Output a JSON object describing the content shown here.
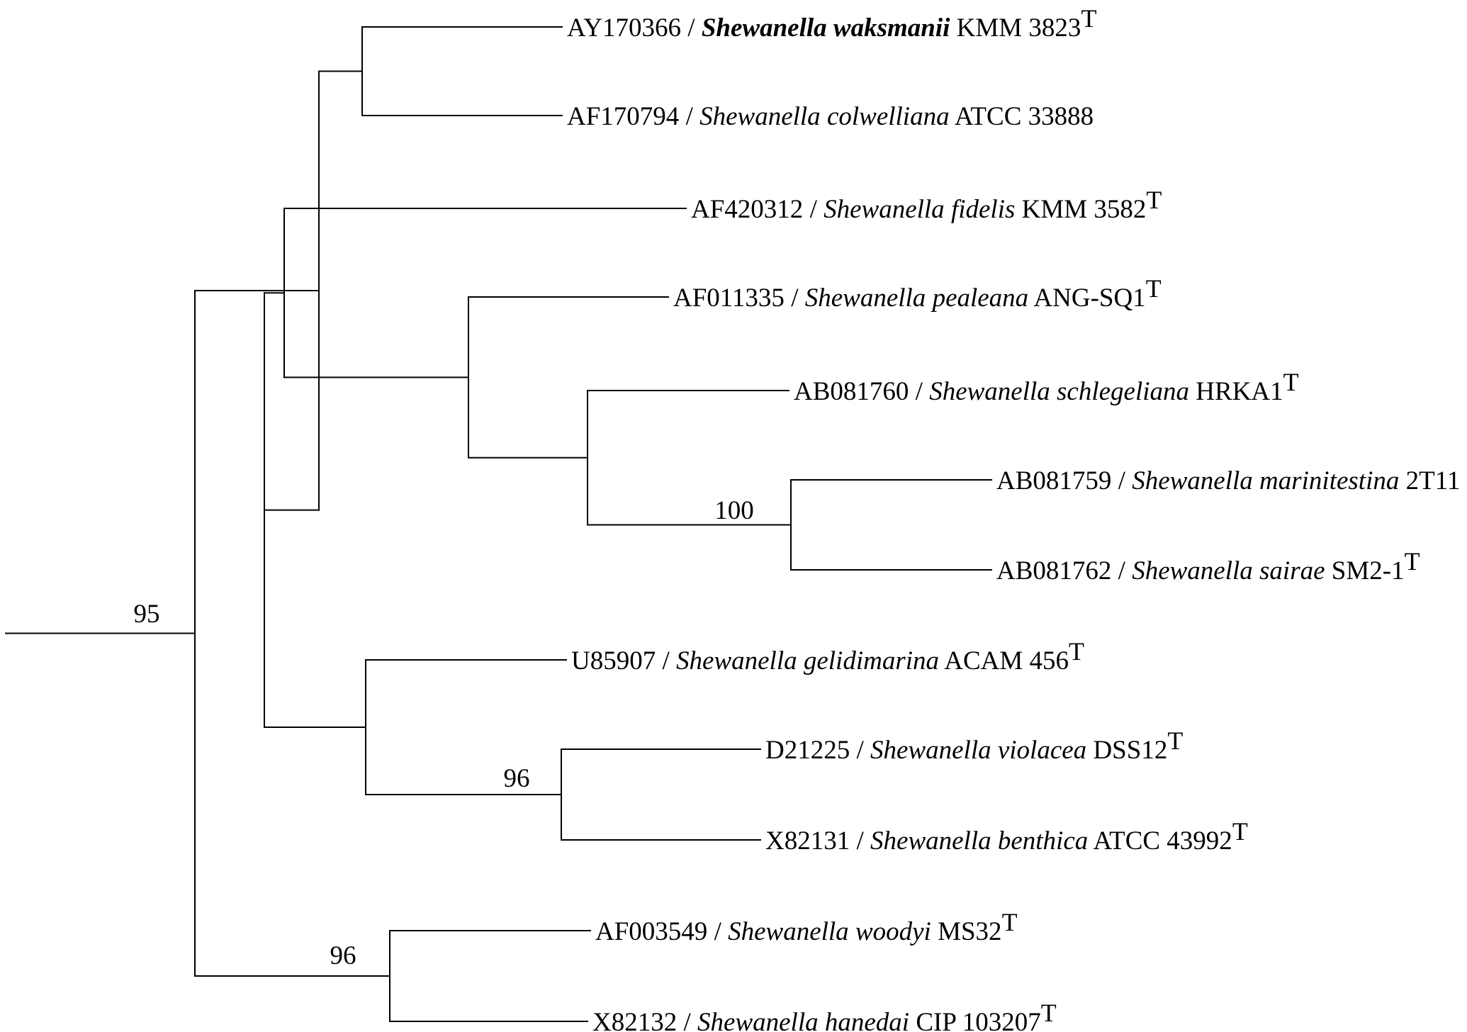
{
  "leaves": [
    {
      "id": "waksmanii",
      "accession": "AY170366",
      "genus": "Shewanella",
      "species": "waksmanii",
      "strain": "KMM 3823",
      "type_strain": "T",
      "bold": true
    },
    {
      "id": "colwelliana",
      "accession": "AF170794",
      "genus": "Shewanella",
      "species": "colwelliana",
      "strain": "ATCC 33888",
      "type_strain": "",
      "bold": false
    },
    {
      "id": "fidelis",
      "accession": "AF420312",
      "genus": "Shewanella",
      "species": "fidelis",
      "strain": "KMM 3582",
      "type_strain": "T",
      "bold": false
    },
    {
      "id": "pealeana",
      "accession": "AF011335",
      "genus": "Shewanella",
      "species": "pealeana",
      "strain": "ANG-SQ1",
      "type_strain": "T",
      "bold": false
    },
    {
      "id": "schlegeliana",
      "accession": "AB081760",
      "genus": "Shewanella",
      "species": "schlegeliana",
      "strain": "HRKA1",
      "type_strain": "T",
      "bold": false
    },
    {
      "id": "marinitestina",
      "accession": "AB081759",
      "genus": "Shewanella",
      "species": "marinitestina",
      "strain": "2T11",
      "type_strain": "",
      "bold": false
    },
    {
      "id": "sairae",
      "accession": "AB081762",
      "genus": "Shewanella",
      "species": "sairae",
      "strain": "SM2-1",
      "type_strain": "T",
      "bold": false
    },
    {
      "id": "gelidimarina",
      "accession": "U85907",
      "genus": "Shewanella",
      "species": "gelidimarina",
      "strain": "ACAM 456",
      "type_strain": "T",
      "bold": false
    },
    {
      "id": "violacea",
      "accession": "D21225",
      "genus": "Shewanella",
      "species": "violacea",
      "strain": "DSS12",
      "type_strain": "T",
      "bold": false
    },
    {
      "id": "benthica",
      "accession": "X82131",
      "genus": "Shewanella",
      "species": "benthica",
      "strain": "ATCC 43992",
      "type_strain": "T",
      "bold": false
    },
    {
      "id": "woodyi",
      "accession": "AF003549",
      "genus": "Shewanella",
      "species": "woodyi",
      "strain": "MS32",
      "type_strain": "T",
      "bold": false
    },
    {
      "id": "hanedai",
      "accession": "X82132",
      "genus": "Shewanella",
      "species": "hanedai",
      "strain": "CIP 103207",
      "type_strain": "T",
      "bold": false
    }
  ],
  "bootstrap": [
    {
      "node": "root",
      "value": "95"
    },
    {
      "node": "marinitestina-sairae",
      "value": "100"
    },
    {
      "node": "violacea-benthica",
      "value": "96"
    },
    {
      "node": "woodyi-hanedai",
      "value": "96"
    }
  ],
  "tree": "(((((waksmanii,colwelliana),((fidelis,(pealeana,(schlegeliana,(marinitestina,sairae)100))),(gelidimarina,(violacea,benthica)96)))),(woodyi,hanedai)96)95)"
}
